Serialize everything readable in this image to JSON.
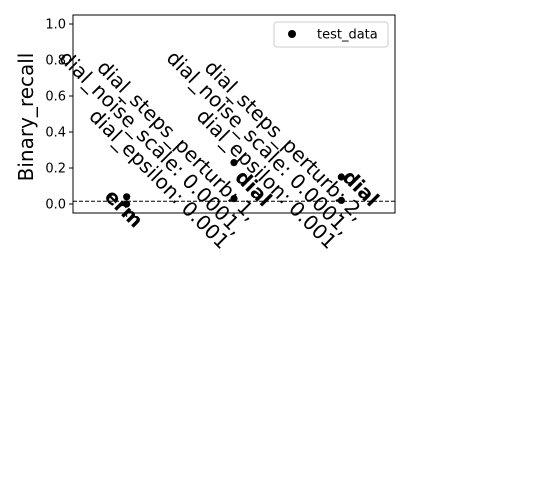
{
  "chart_data": {
    "type": "scatter",
    "title": "",
    "xlabel": "",
    "ylabel": "Binary_recall",
    "ylim": [
      -0.05,
      1.05
    ],
    "yticks": [
      0.0,
      0.2,
      0.4,
      0.6,
      0.8,
      1.0
    ],
    "ytick_labels": [
      "0.0",
      "0.2",
      "0.4",
      "0.6",
      "0.8",
      "1.0"
    ],
    "xlim": [
      -0.5,
      2.5
    ],
    "categories": [
      {
        "bold": "erm",
        "lines": []
      },
      {
        "bold": "dial",
        "lines": [
          "dial_steps_perturb: 1,",
          "dial_noise_scale: 0.0001,",
          "dial_epsilon: 0.001"
        ]
      },
      {
        "bold": "dial",
        "lines": [
          "dial_steps_perturb: 2,",
          "dial_noise_scale: 0.0001,",
          "dial_epsilon: 0.001"
        ]
      }
    ],
    "series": [
      {
        "name": "test_data",
        "color": "#000000",
        "points": [
          {
            "x": 0,
            "y": 0.04
          },
          {
            "x": 0,
            "y": 0.0
          },
          {
            "x": 1,
            "y": 0.23
          },
          {
            "x": 1,
            "y": 0.03
          },
          {
            "x": 2,
            "y": 0.15
          },
          {
            "x": 2,
            "y": 0.02
          }
        ]
      }
    ],
    "reference_line": {
      "y": 0.015,
      "style": "dashed",
      "color": "#000000"
    },
    "legend": {
      "placement": "top-right"
    },
    "grid": false
  }
}
